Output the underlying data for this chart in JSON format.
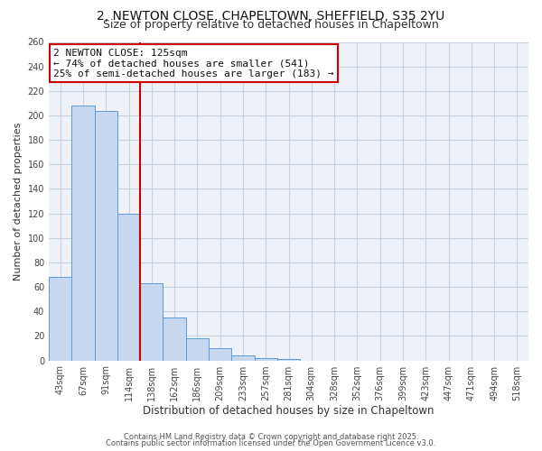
{
  "title1": "2, NEWTON CLOSE, CHAPELTOWN, SHEFFIELD, S35 2YU",
  "title2": "Size of property relative to detached houses in Chapeltown",
  "xlabel": "Distribution of detached houses by size in Chapeltown",
  "ylabel": "Number of detached properties",
  "bar_labels": [
    "43sqm",
    "67sqm",
    "91sqm",
    "114sqm",
    "138sqm",
    "162sqm",
    "186sqm",
    "209sqm",
    "233sqm",
    "257sqm",
    "281sqm",
    "304sqm",
    "328sqm",
    "352sqm",
    "376sqm",
    "399sqm",
    "423sqm",
    "447sqm",
    "471sqm",
    "494sqm",
    "518sqm"
  ],
  "bar_values": [
    68,
    208,
    204,
    120,
    63,
    35,
    18,
    10,
    4,
    2,
    1,
    0,
    0,
    0,
    0,
    0,
    0,
    0,
    0,
    0,
    0
  ],
  "bar_color": "#c5d8f0",
  "bar_edge_color": "#5b9bd5",
  "grid_color": "#c8d4e3",
  "background_color": "#ffffff",
  "plot_bg_color": "#eef2f8",
  "vline_x": 3.5,
  "vline_color": "#cc0000",
  "annotation_line1": "2 NEWTON CLOSE: 125sqm",
  "annotation_line2": "← 74% of detached houses are smaller (541)",
  "annotation_line3": "25% of semi-detached houses are larger (183) →",
  "annotation_box_color": "#ffffff",
  "annotation_box_edge": "#cc0000",
  "ylim": [
    0,
    260
  ],
  "yticks": [
    0,
    20,
    40,
    60,
    80,
    100,
    120,
    140,
    160,
    180,
    200,
    220,
    240,
    260
  ],
  "footer1": "Contains HM Land Registry data © Crown copyright and database right 2025.",
  "footer2": "Contains public sector information licensed under the Open Government Licence v3.0.",
  "title1_fontsize": 10,
  "title2_fontsize": 9,
  "xlabel_fontsize": 8.5,
  "ylabel_fontsize": 8,
  "tick_fontsize": 7,
  "annotation_fontsize": 8,
  "footer_fontsize": 6
}
